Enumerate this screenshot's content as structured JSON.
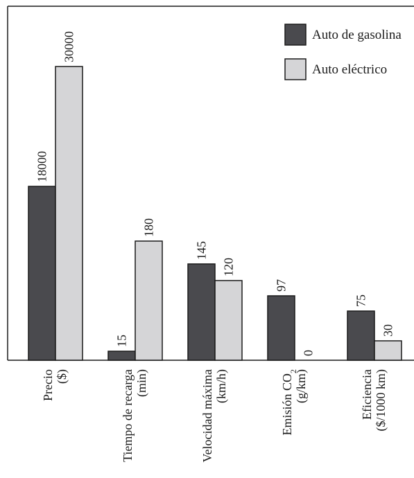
{
  "chart_data": {
    "type": "bar",
    "categories": [
      {
        "lines": [
          "Precio",
          "($)"
        ]
      },
      {
        "lines": [
          "Tiempo de recarga",
          "(min)"
        ]
      },
      {
        "lines": [
          "Velocidad máxima",
          "(km/h)"
        ]
      },
      {
        "lines": [
          "Emisión CO",
          "(g/km)"
        ],
        "subscript": "2"
      },
      {
        "lines": [
          "Eficiencia",
          "($/1000 km)"
        ]
      }
    ],
    "series": [
      {
        "name": "Auto de gasolina",
        "color": "#4a4a4e",
        "values": [
          18000,
          15,
          145,
          97,
          75
        ],
        "labels": [
          "18000",
          "15",
          "145",
          "97",
          "75"
        ]
      },
      {
        "name": "Auto eléctrico",
        "color": "#d5d5d7",
        "values": [
          30000,
          180,
          120,
          0,
          30
        ],
        "labels": [
          "30000",
          "180",
          "120",
          "0",
          "30"
        ]
      }
    ],
    "scale_note": "Bars are drawn on non-uniform visual scales per category; no numeric axis is printed",
    "display_heights_relative": [
      [
        251,
        424
      ],
      [
        13,
        172
      ],
      [
        139,
        115
      ],
      [
        93,
        0
      ],
      [
        71,
        28
      ]
    ],
    "legend_position": "top-right",
    "grid": false
  }
}
